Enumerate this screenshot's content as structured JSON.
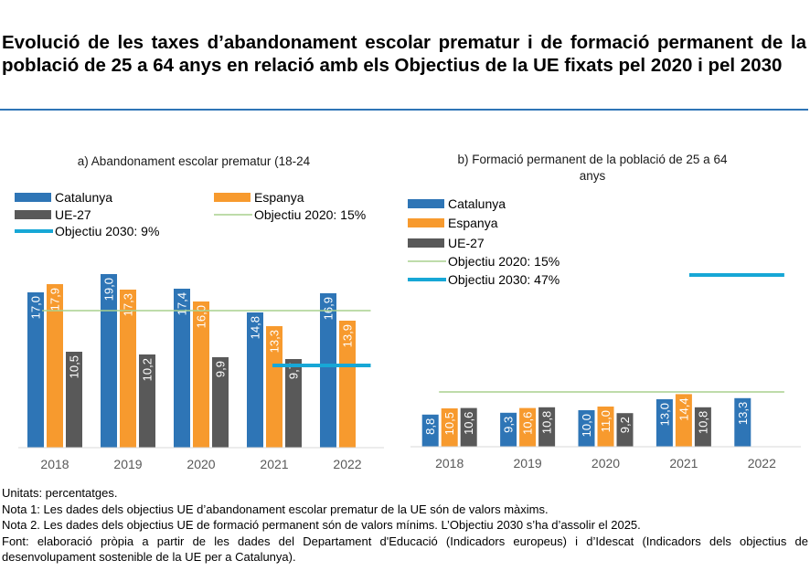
{
  "page": {
    "title": "Evolució de les taxes d’abandonament escolar prematur i de formació permanent de la població de 25 a 64 anys en relació amb els Objectius de la UE fixats pel 2020 i pel 2030",
    "footnotes": [
      "Unitats: percentatges.",
      "Nota 1: Les dades dels objectius UE d’abandonament escolar prematur de la UE són de valors màxims.",
      "Nota 2. Les dades dels objectius UE de formació permanent són de valors mínims. L’Objectiu 2030 s’ha d’assolir el 2025.",
      "Font: elaboració pròpia a partir de les dades del Departament d'Educació (Indicadors europeus) i d’Idescat (Indicadors dels objectius de desenvolupament sostenible de la UE per a Catalunya)."
    ]
  },
  "colors": {
    "catalunya": "#2e75b6",
    "espanya": "#f79a2e",
    "ue27": "#595959",
    "objectiu2020": "#a9d18e",
    "objectiu2030": "#17a7d6",
    "axis": "#d9d9d9"
  },
  "chart_data": [
    {
      "type": "bar",
      "title_lines": [
        "a) Abandonament escolar prematur (18-24"
      ],
      "categories": [
        "2018",
        "2019",
        "2020",
        "2021",
        "2022"
      ],
      "ylim": [
        0,
        22
      ],
      "grid": false,
      "legend": [
        "Catalunya",
        "Espanya",
        "UE-27",
        "Objectiu 2020: 15%",
        "Objectiu 2030: 9%"
      ],
      "series": [
        {
          "name": "Catalunya",
          "key": "catalunya",
          "values": [
            17.0,
            19.0,
            17.4,
            14.8,
            16.9
          ],
          "labels": [
            "17,0",
            "19,0",
            "17,4",
            "14,8",
            "16,9"
          ]
        },
        {
          "name": "Espanya",
          "key": "espanya",
          "values": [
            17.9,
            17.3,
            16.0,
            13.3,
            13.9
          ],
          "labels": [
            "17,9",
            "17,3",
            "16,0",
            "13,3",
            "13,9"
          ]
        },
        {
          "name": "UE-27",
          "key": "ue27",
          "values": [
            10.5,
            10.2,
            9.9,
            9.7,
            null
          ],
          "labels": [
            "10,5",
            "10,2",
            "9,9",
            "9,7",
            ""
          ]
        }
      ],
      "targets": [
        {
          "name": "Objectiu 2020: 15%",
          "key": "objectiu2020",
          "value": 15,
          "from": 0,
          "to": 4
        },
        {
          "name": "Objectiu 2030: 9%",
          "key": "objectiu2030",
          "value": 9,
          "from": 3,
          "to": 4
        }
      ]
    },
    {
      "type": "bar",
      "title_lines": [
        "b) Formació permanent de la població de 25 a 64",
        "anys"
      ],
      "categories": [
        "2018",
        "2019",
        "2020",
        "2021",
        "2022"
      ],
      "ylim": [
        0,
        75
      ],
      "grid": false,
      "legend": [
        "Catalunya",
        "Espanya",
        "UE-27",
        "Objectiu 2020: 15%",
        "Objectiu 2030: 47%"
      ],
      "series": [
        {
          "name": "Catalunya",
          "key": "catalunya",
          "values": [
            8.8,
            9.3,
            10.0,
            13.0,
            13.3
          ],
          "labels": [
            "8,8",
            "9,3",
            "10,0",
            "13,0",
            "13,3"
          ]
        },
        {
          "name": "Espanya",
          "key": "espanya",
          "values": [
            10.5,
            10.6,
            11.0,
            14.4,
            null
          ],
          "labels": [
            "10,5",
            "10,6",
            "11,0",
            "14,4",
            ""
          ]
        },
        {
          "name": "UE-27",
          "key": "ue27",
          "values": [
            10.6,
            10.8,
            9.2,
            10.8,
            null
          ],
          "labels": [
            "10,6",
            "10,8",
            "9,2",
            "10,8",
            ""
          ]
        }
      ],
      "targets": [
        {
          "name": "Objectiu 2020: 15%",
          "key": "objectiu2020",
          "value": 15,
          "from": 0,
          "to": 4
        },
        {
          "name": "Objectiu 2030: 47%",
          "key": "objectiu2030",
          "value": 47,
          "from": 3,
          "to": 4
        }
      ]
    }
  ]
}
